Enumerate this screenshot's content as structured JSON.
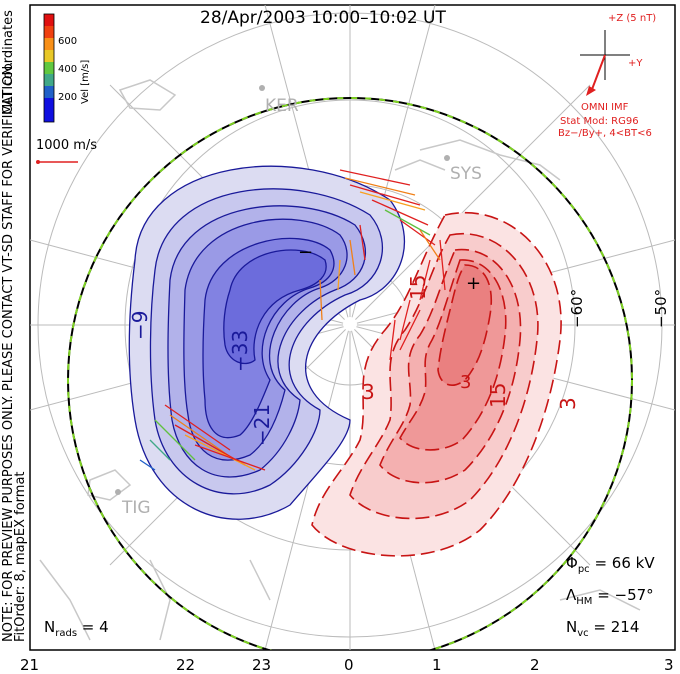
{
  "title": "28/Apr/2003 10:00–10:02 UT",
  "colorbar": {
    "label": "Vel [m/s]",
    "ticks": [
      "600",
      "400",
      "200"
    ],
    "colors": [
      "#e01010",
      "#f04010",
      "#f89018",
      "#e8c828",
      "#60c840",
      "#40a888",
      "#2060c8",
      "#1010e0"
    ]
  },
  "side_note_1": "NOTE: FOR PREVIEW PURPOSES ONLY. PLEASE CONTACT VT-SD STAFF FOR VERIFICATION.",
  "side_note_2": "FitOrder: 8, mapEX format",
  "mlt_label": "MLT coordinates",
  "vector_scale": "1000 m/s",
  "imf": {
    "z_label": "+Z (5 nT)",
    "y_label": "+Y",
    "source": "OMNI IMF",
    "stat_mod": "Stat Mod: RG96",
    "stat_cond": "Bz−/By+, 4<BT<6"
  },
  "stations": [
    "KER",
    "SYS",
    "TIG"
  ],
  "lat_labels": [
    "−60°",
    "−50°"
  ],
  "contour_labels_neg": [
    "−9",
    "−33",
    "−21",
    "−"
  ],
  "contour_labels_pos": [
    "3",
    "15",
    "3",
    "15",
    "3",
    "+"
  ],
  "stats": {
    "phi_pc": "66 kV",
    "lambda_hm": "−57°",
    "n_vc": "214",
    "n_rads": "4"
  },
  "x_ticks": [
    "21",
    "22",
    "23",
    "0",
    "1",
    "2",
    "3"
  ]
}
